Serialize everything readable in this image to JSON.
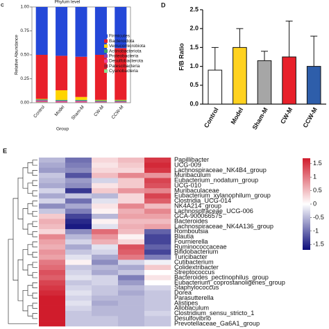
{
  "chart_data": [
    {
      "type": "stacked-bar",
      "panel": "C",
      "title": "Phylum level",
      "ylabel": "Relative Abundance",
      "xlabel": "Group",
      "categories": [
        "Control",
        "Model",
        "Sham-M",
        "CW-M",
        "CCW-M"
      ],
      "ylim": [
        0,
        1
      ],
      "yticks": [
        {
          "value": 0,
          "label": "0.00"
        },
        {
          "value": 0.25,
          "label": "0.25"
        },
        {
          "value": 0.5,
          "label": "0.50"
        },
        {
          "value": 0.75,
          "label": "0.75"
        },
        {
          "value": 1,
          "label": "1.00"
        }
      ],
      "series": [
        {
          "name": "Firmicutes",
          "color": "#2448d8",
          "values": [
            0.5,
            0.51,
            0.52,
            0.5,
            0.43
          ]
        },
        {
          "name": "Bacteroidota",
          "color": "#e8202a",
          "values": [
            0.46,
            0.36,
            0.42,
            0.47,
            0.54
          ]
        },
        {
          "name": "Verrucomicrobiota",
          "color": "#ffd400",
          "values": [
            0.005,
            0.1,
            0.03,
            0.005,
            0.005
          ]
        },
        {
          "name": "Actinobacteriota",
          "color": "#3fa66b",
          "values": [
            0.01,
            0.01,
            0.01,
            0.01,
            0.01
          ]
        },
        {
          "name": "Proteobacteria",
          "color": "#8e44ad",
          "values": [
            0.005,
            0.005,
            0.005,
            0.005,
            0.005
          ]
        },
        {
          "name": "Desulfobacterota",
          "color": "#e84393",
          "values": [
            0.01,
            0.01,
            0.01,
            0.005,
            0.005
          ]
        },
        {
          "name": "Patescibacteria",
          "color": "#a0203a",
          "values": [
            0.005,
            0.003,
            0.003,
            0.003,
            0.003
          ]
        },
        {
          "name": "Cyanobacteria",
          "color": "#8fe08f",
          "values": [
            0.005,
            0.002,
            0.002,
            0.002,
            0.002
          ]
        }
      ]
    },
    {
      "type": "bar",
      "panel": "D",
      "ylabel": "F/B Ratio",
      "categories": [
        "Control",
        "Model",
        "Sham-M",
        "CW-M",
        "CCW-M"
      ],
      "values": [
        0.9,
        1.5,
        1.15,
        1.25,
        1.0
      ],
      "errors": [
        0.6,
        0.5,
        0.25,
        0.95,
        0.8
      ],
      "colors": [
        "#ffffff",
        "#ffd21f",
        "#a6a6a6",
        "#e8202a",
        "#2e5eaa"
      ],
      "ylim": [
        0,
        2.5
      ],
      "yticks": [
        {
          "value": 0,
          "label": "0.0"
        },
        {
          "value": 0.5,
          "label": "0.5"
        },
        {
          "value": 1,
          "label": "1.0"
        },
        {
          "value": 1.5,
          "label": "1.5"
        },
        {
          "value": 2,
          "label": "2.0"
        },
        {
          "value": 2.5,
          "label": "2.5"
        }
      ]
    },
    {
      "type": "heatmap",
      "panel": "E",
      "rows": [
        "Papillibacter",
        "UCG-009",
        "Lachnospiraceae_NK4B4_group",
        "Muribaculum",
        "Eubacterium_nodatum_group",
        "UCG-010",
        "Muribaculaceae",
        "Eubacterium_xylanophilum_group",
        "Clostridia_UCG-014",
        "NK4A214_group",
        "Lachnospiraceae_UCG-006",
        "GCA-900066575",
        "Bacteroides",
        "Lachnospiraceae_NK4A136_group",
        "Romboutsia",
        "Blautia",
        "Fournierella",
        "Ruminococcaceae",
        "Bifidobacterium",
        "Turicibacter",
        "Cutibacterium",
        "Colidextribacter",
        "Streptococcus",
        "Bacteroides_pectinophilus_group",
        "Eubacterium_coprostanoligenes_group",
        "Staphylococcus",
        "Dorea",
        "Parasutterella",
        "Alistipes",
        "Allobaculum",
        "Clostridium_sensu_stricto_1",
        "Desulfovibrio",
        "Prevotellaceae_Ga6A1_group"
      ],
      "values": [
        [
          -0.5,
          -1,
          0.3,
          0.5,
          1.5
        ],
        [
          -0.6,
          -0.9,
          0.2,
          0.4,
          1.6
        ],
        [
          -0.7,
          -0.8,
          0.3,
          0.3,
          1.5
        ],
        [
          -0.4,
          -1.2,
          0.5,
          0.9,
          0.8
        ],
        [
          -0.5,
          -0.7,
          -0.3,
          0.4,
          1.4
        ],
        [
          -0.6,
          -0.8,
          0.2,
          0.4,
          1.3
        ],
        [
          -0.3,
          -1.4,
          0.4,
          0.8,
          0.9
        ],
        [
          -0.6,
          -0.4,
          -0.5,
          0.3,
          1.4
        ],
        [
          -0.3,
          -1,
          -0.2,
          0.3,
          1.2
        ],
        [
          -0.8,
          -0.6,
          0.2,
          0.9,
          0.5
        ],
        [
          -0.4,
          -0.9,
          0.1,
          0.6,
          0.9
        ],
        [
          0.4,
          -1.3,
          -0.5,
          0.7,
          0.7
        ],
        [
          0.6,
          -1.5,
          0.1,
          0.5,
          0.5
        ],
        [
          0.5,
          -1.6,
          -0.2,
          0.6,
          0.7
        ],
        [
          0.3,
          -0.8,
          1.1,
          0.5,
          -1.1
        ],
        [
          0.9,
          -0.5,
          0.8,
          0.1,
          -1.3
        ],
        [
          0.7,
          -0.3,
          0.6,
          0.3,
          -1.3
        ],
        [
          0.6,
          -0.6,
          -0.2,
          1.3,
          -1.1
        ],
        [
          0.8,
          -0.4,
          -0.3,
          1.2,
          -1.3
        ],
        [
          0.7,
          -0.2,
          -0.6,
          1,
          -0.9
        ],
        [
          1,
          0.1,
          -0.8,
          -0.3,
          -0.1
        ],
        [
          1.1,
          -0.4,
          -0.5,
          -0.6,
          0.4
        ],
        [
          1.3,
          -0.3,
          -0.6,
          -0.4,
          0
        ],
        [
          1.2,
          -0.2,
          -0.3,
          -0.9,
          0.2
        ],
        [
          1.4,
          -0.4,
          -0.3,
          -0.7,
          0
        ],
        [
          1.5,
          -0.3,
          -0.4,
          -0.5,
          -0.3
        ],
        [
          1.6,
          -0.2,
          -0.4,
          -0.6,
          -0.4
        ],
        [
          1.7,
          -0.3,
          -0.5,
          -0.5,
          -0.4
        ],
        [
          1.7,
          -0.2,
          -0.6,
          -0.5,
          -0.4
        ],
        [
          1.7,
          -0.3,
          -0.5,
          -0.5,
          -0.4
        ],
        [
          1.7,
          -0.4,
          -0.5,
          -0.5,
          -0.3
        ],
        [
          1.7,
          -0.4,
          -0.4,
          -0.5,
          -0.4
        ],
        [
          1.7,
          -0.4,
          -0.4,
          -0.5,
          -0.4
        ]
      ],
      "zlim": [
        -1.7,
        1.7
      ],
      "colormap": [
        "#0c0c7a",
        "#ffffff",
        "#d01c2c"
      ],
      "zticks": [
        1.5,
        1,
        0.5,
        0,
        -0.5,
        -1,
        -1.5
      ]
    }
  ]
}
